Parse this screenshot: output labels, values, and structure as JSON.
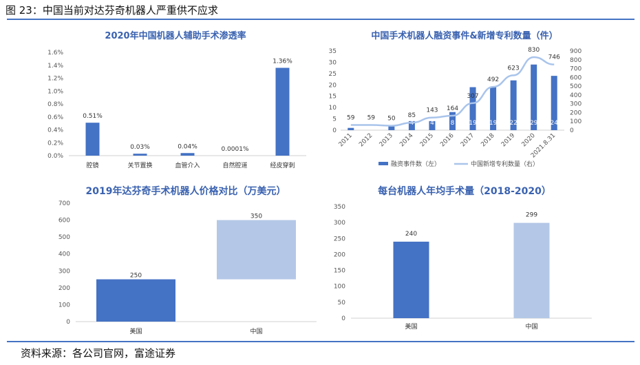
{
  "figure": {
    "title": "图 23：中国当前对达芬奇机器人严重供不应求",
    "source": "资料来源：各公司官网，富途证券"
  },
  "colors": {
    "primary": "#4472c4",
    "light": "#b4c7e7",
    "line": "#a9c4eb",
    "rule": "#4472c4"
  },
  "chart_data": [
    {
      "id": "penetration",
      "type": "bar",
      "title": "2020年中国机器人辅助手术渗透率",
      "categories": [
        "腔镜",
        "关节置换",
        "血管介入",
        "自然腔道",
        "经皮穿刺"
      ],
      "values": [
        0.51,
        0.03,
        0.04,
        0.0001,
        1.36
      ],
      "data_labels": [
        "0.51%",
        "0.03%",
        "0.04%",
        "0.0001%",
        "1.36%"
      ],
      "ylim": [
        0,
        1.6
      ],
      "yticks": [
        "0.0%",
        "0.2%",
        "0.4%",
        "0.6%",
        "0.8%",
        "1.0%",
        "1.2%",
        "1.4%",
        "1.6%"
      ],
      "ytick_values": [
        0,
        0.2,
        0.4,
        0.6,
        0.8,
        1.0,
        1.2,
        1.4,
        1.6
      ],
      "grid": false
    },
    {
      "id": "financing",
      "type": "bar+line",
      "title": "中国手术机器人融资事件&新增专利数量（件）",
      "categories": [
        "2011",
        "2012",
        "2013",
        "2014",
        "2015",
        "2016",
        "2017",
        "2018",
        "2019",
        "2020",
        "2021.8.31"
      ],
      "series": [
        {
          "name": "融资事件数（左）",
          "type": "bar",
          "axis": "left",
          "values": [
            1,
            0,
            2,
            4,
            4,
            8,
            19,
            19,
            22,
            29,
            24
          ],
          "labels": [
            "",
            "",
            "",
            "4",
            "4",
            "8",
            "19",
            "19",
            "22",
            "29",
            "24"
          ]
        },
        {
          "name": "中国新增专利数量（右）",
          "type": "line",
          "axis": "right",
          "values": [
            59,
            59,
            50,
            85,
            143,
            164,
            307,
            492,
            623,
            830,
            746
          ],
          "labels": [
            "59",
            "59",
            "50",
            "85",
            "143",
            "164",
            "307",
            "492",
            "623",
            "830",
            "746"
          ]
        }
      ],
      "ylim_left": [
        0,
        35
      ],
      "yticks_left": [
        "0",
        "5",
        "10",
        "15",
        "20",
        "25",
        "30",
        "35"
      ],
      "ylim_right": [
        0,
        900
      ],
      "yticks_right": [
        "0",
        "100",
        "200",
        "300",
        "400",
        "500",
        "600",
        "700",
        "800",
        "900"
      ],
      "legend": "bottom",
      "grid": false
    },
    {
      "id": "price",
      "type": "bar",
      "title": "2019年达芬奇手术机器人价格对比（万美元）",
      "categories": [
        "美国",
        "中国"
      ],
      "series": [
        {
          "name": "美国",
          "base": 0,
          "value": 250,
          "label": "250"
        },
        {
          "name": "中国",
          "base": 250,
          "value": 350,
          "label": "350"
        }
      ],
      "ylim": [
        0,
        700
      ],
      "yticks": [
        "0",
        "100",
        "200",
        "300",
        "400",
        "500",
        "600",
        "700"
      ],
      "grid": false
    },
    {
      "id": "surgeries",
      "type": "bar",
      "title": "每台机器人年均手术量（2018-2020）",
      "categories": [
        "美国",
        "中国"
      ],
      "values": [
        240,
        299
      ],
      "data_labels": [
        "240",
        "299"
      ],
      "ylim": [
        0,
        350
      ],
      "yticks": [
        "0",
        "50",
        "100",
        "150",
        "200",
        "250",
        "300",
        "350"
      ],
      "grid": false
    }
  ]
}
